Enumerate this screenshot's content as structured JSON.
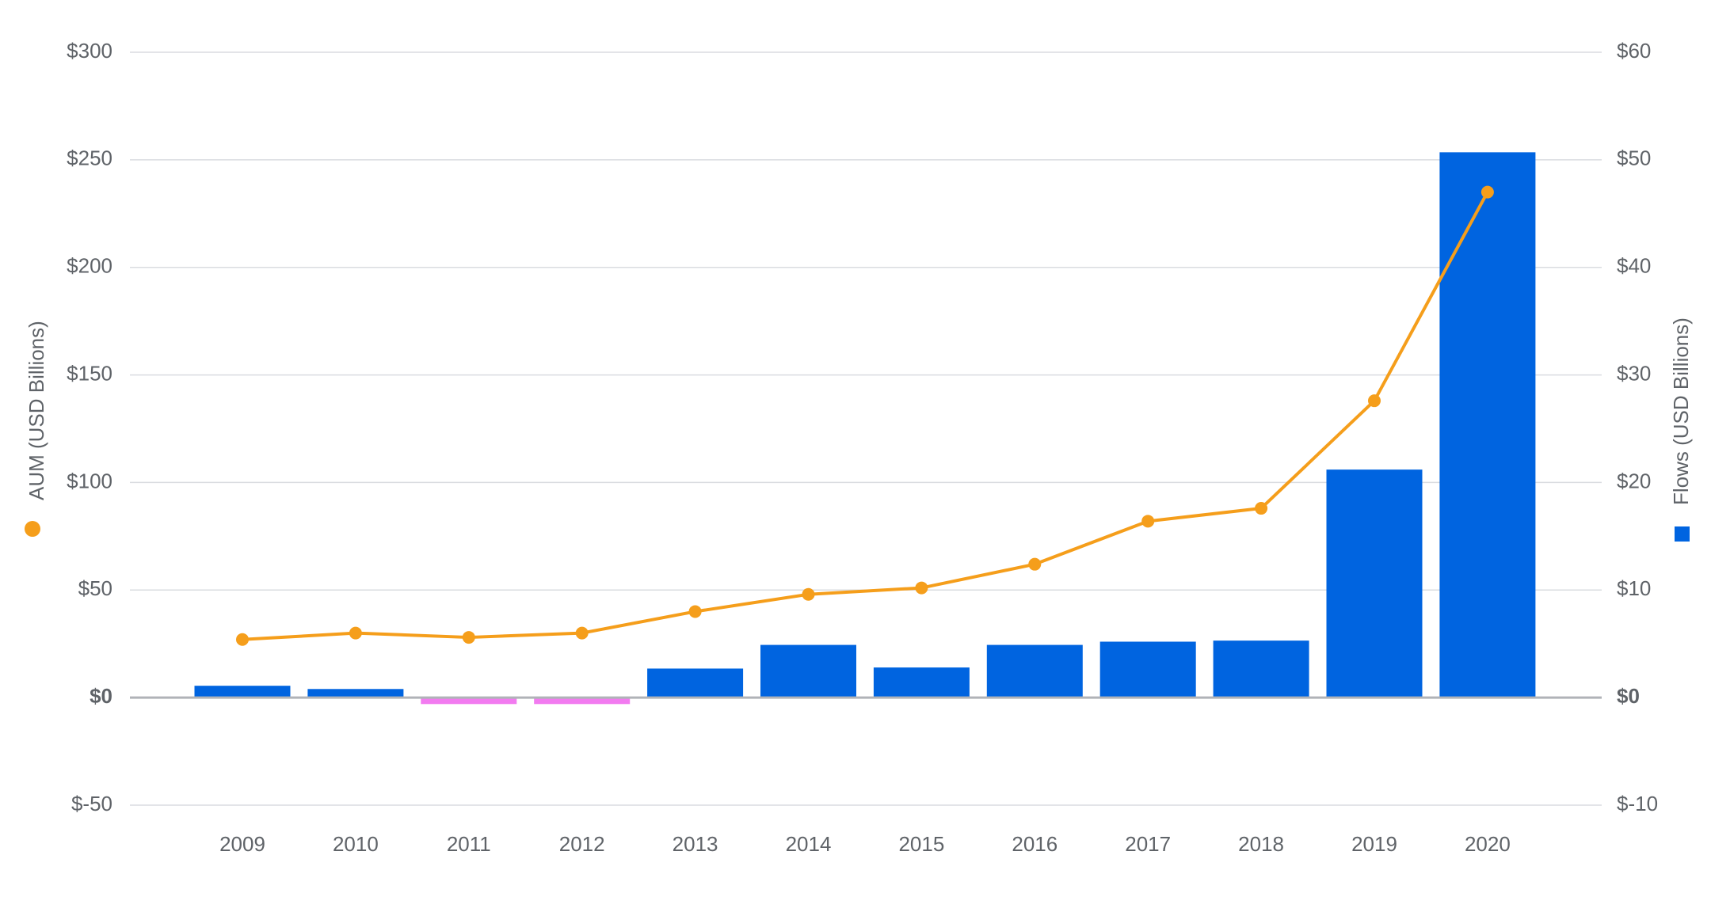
{
  "chart_data": {
    "type": "bar",
    "categories": [
      "2009",
      "2010",
      "2011",
      "2012",
      "2013",
      "2014",
      "2015",
      "2016",
      "2017",
      "2018",
      "2019",
      "2020"
    ],
    "series": [
      {
        "name": "AUM (USD Billions)",
        "type": "line",
        "axis": "left",
        "color": "#f59e1b",
        "values": [
          27,
          30,
          28,
          30,
          40,
          48,
          51,
          62,
          82,
          88,
          138,
          235
        ]
      },
      {
        "name": "Flows (USD Billions)",
        "type": "bar",
        "axis": "right",
        "color": "#0064e0",
        "negative_color": "#f27bf0",
        "values": [
          1.1,
          0.8,
          -0.6,
          -0.6,
          2.7,
          4.9,
          2.8,
          4.9,
          5.2,
          5.3,
          21.2,
          50.7
        ]
      }
    ],
    "left_axis": {
      "label": "AUM (USD Billions)",
      "ylim": [
        -50,
        300
      ],
      "ticks": [
        "$-50",
        "$0",
        "$50",
        "$100",
        "$150",
        "$200",
        "$250",
        "$300"
      ],
      "tick_values": [
        -50,
        0,
        50,
        100,
        150,
        200,
        250,
        300
      ]
    },
    "right_axis": {
      "label": "Flows (USD Billions)",
      "ylim": [
        -10,
        60
      ],
      "ticks": [
        "$-10",
        "$0",
        "$10",
        "$20",
        "$30",
        "$40",
        "$50",
        "$60"
      ],
      "tick_values": [
        -10,
        0,
        10,
        20,
        30,
        40,
        50,
        60
      ]
    },
    "grid": true,
    "legend": "axis-titles"
  }
}
